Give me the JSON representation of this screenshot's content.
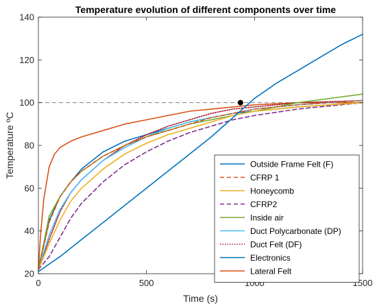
{
  "chart_data": {
    "type": "line",
    "title": "Temperature evolution of different components over time",
    "xlabel": "Time (s)",
    "ylabel": "Temperature ºC",
    "xlim": [
      0,
      1500
    ],
    "ylim": [
      20,
      140
    ],
    "xticks": [
      0,
      500,
      1000,
      1500
    ],
    "yticks": [
      20,
      40,
      60,
      80,
      100,
      120,
      140
    ],
    "grid": false,
    "legend_position": "bottom-right",
    "reference_line": {
      "y": 100,
      "style": "dashed",
      "color": "#808080"
    },
    "marker": {
      "x": 935,
      "y": 100,
      "color": "#000000"
    },
    "series": [
      {
        "name": "Outside Frame Felt (F)",
        "color": "#0072BD",
        "dash": "solid",
        "x": [
          0,
          100,
          200,
          300,
          400,
          500,
          600,
          700,
          800,
          900,
          1000,
          1100,
          1200,
          1300,
          1400,
          1500
        ],
        "y": [
          21,
          28,
          36,
          44,
          52,
          60,
          68,
          76,
          84,
          93,
          102,
          109,
          115,
          121,
          127,
          132
        ]
      },
      {
        "name": "CFRP 1",
        "color": "#D95319",
        "dash": "dashed",
        "x": [
          0,
          50,
          100,
          150,
          200,
          300,
          400,
          500,
          600,
          700,
          800,
          900,
          1000,
          1200,
          1500
        ],
        "y": [
          22,
          44,
          56,
          63,
          68,
          75,
          80,
          84,
          87,
          90,
          93,
          95,
          97,
          99,
          101
        ]
      },
      {
        "name": "Honeycomb",
        "color": "#EDB120",
        "dash": "solid",
        "x": [
          0,
          50,
          100,
          150,
          200,
          300,
          400,
          500,
          600,
          700,
          800,
          900,
          1000,
          1200,
          1500
        ],
        "y": [
          22,
          34,
          45,
          54,
          60,
          69,
          76,
          81,
          85,
          88,
          91,
          94,
          96,
          98,
          100
        ]
      },
      {
        "name": "CFRP2",
        "color": "#7E2F8E",
        "dash": "dashed",
        "x": [
          0,
          50,
          100,
          150,
          200,
          300,
          400,
          500,
          600,
          700,
          800,
          900,
          1000,
          1200,
          1500
        ],
        "y": [
          22,
          28,
          37,
          46,
          53,
          63,
          71,
          77,
          82,
          86,
          89,
          92,
          94,
          97,
          100
        ]
      },
      {
        "name": "Inside air",
        "color": "#77AC30",
        "dash": "solid",
        "x": [
          0,
          50,
          100,
          150,
          200,
          300,
          400,
          500,
          600,
          700,
          800,
          900,
          1000,
          1200,
          1500
        ],
        "y": [
          22,
          47,
          56,
          63,
          68,
          75,
          80,
          84,
          87,
          90,
          92,
          94,
          96,
          100,
          104
        ]
      },
      {
        "name": "Duct Polycarbonate (DP)",
        "color": "#4DBEEE",
        "dash": "solid",
        "x": [
          0,
          50,
          100,
          150,
          200,
          300,
          400,
          500,
          600,
          700,
          800,
          900,
          1000,
          1200,
          1500
        ],
        "y": [
          22,
          38,
          50,
          58,
          64,
          73,
          79,
          84,
          88,
          91,
          93,
          95,
          97,
          99,
          101
        ]
      },
      {
        "name": "Duct Felt (DF)",
        "color": "#A2142F",
        "dash": "dotted",
        "x": [
          0,
          50,
          100,
          150,
          200,
          300,
          400,
          500,
          600,
          700,
          800,
          900,
          1000,
          1200,
          1500
        ],
        "y": [
          22,
          36,
          49,
          58,
          64,
          73,
          80,
          85,
          89,
          92,
          95,
          97,
          98,
          100,
          101
        ]
      },
      {
        "name": "Electronics",
        "color": "#0072BD",
        "dash": "solid",
        "x": [
          0,
          50,
          100,
          150,
          200,
          300,
          400,
          500,
          600,
          700,
          800,
          900,
          1000,
          1200,
          1500
        ],
        "y": [
          22,
          45,
          56,
          63,
          69,
          77,
          82,
          85,
          88,
          91,
          93,
          95,
          96,
          98,
          100
        ]
      },
      {
        "name": "Lateral Felt",
        "color": "#D95319",
        "dash": "solid",
        "x": [
          0,
          10,
          25,
          50,
          75,
          100,
          150,
          200,
          300,
          400,
          500,
          600,
          700,
          800,
          900,
          1000,
          1200,
          1500
        ],
        "y": [
          22,
          38,
          55,
          70,
          76,
          79,
          82,
          84,
          87,
          90,
          92,
          94,
          96,
          97,
          98,
          99,
          100,
          100
        ]
      }
    ]
  }
}
